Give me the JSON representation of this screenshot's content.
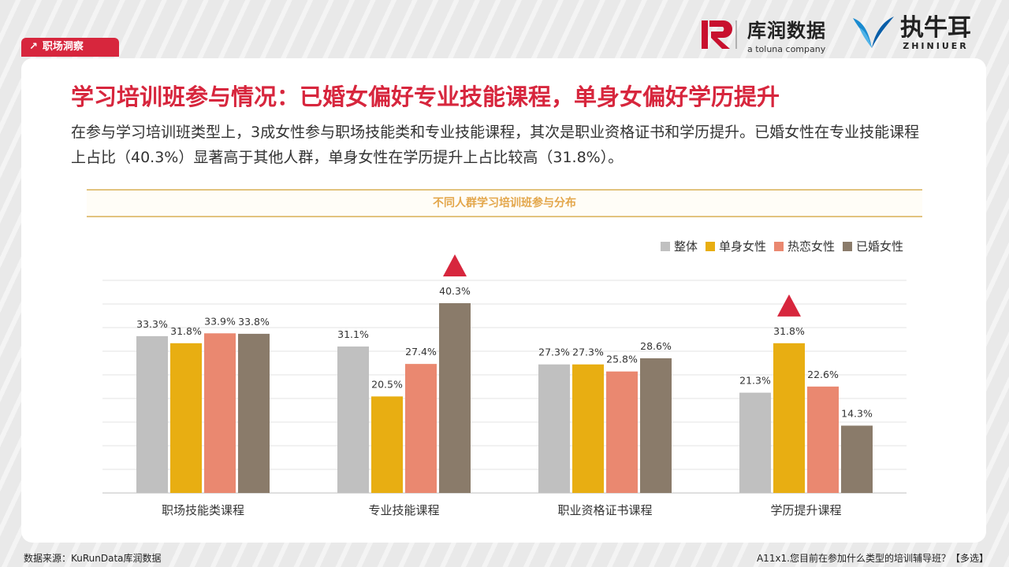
{
  "tag": {
    "label": "职场洞察"
  },
  "brand": {
    "kurun_name": "库润数据",
    "kurun_sub": "a toluna company",
    "kurun_mark": "R",
    "zhiniuer_name": "执牛耳",
    "zhiniuer_sub": "ZHINIUER"
  },
  "header": {
    "title": "学习培训班参与情况：已婚女偏好专业技能课程，单身女偏好学历提升",
    "description": "在参与学习培训班类型上，3成女性参与职场技能类和专业技能课程，其次是职业资格证书和学历提升。已婚女性在专业技能课程上占比（40.3%）显著高于其他人群，单身女性在学历提升上占比较高（31.8%）。"
  },
  "chart_data": {
    "type": "bar",
    "title": "不同人群学习培训班参与分布",
    "categories": [
      "职场技能类课程",
      "专业技能课程",
      "职业资格证书课程",
      "学历提升课程"
    ],
    "series": [
      {
        "name": "整体",
        "color": "#c0c0c0",
        "values": [
          33.3,
          31.1,
          27.3,
          21.3
        ]
      },
      {
        "name": "单身女性",
        "color": "#e8ae12",
        "values": [
          31.8,
          20.5,
          27.3,
          31.8
        ]
      },
      {
        "name": "热恋女性",
        "color": "#ea8870",
        "values": [
          33.9,
          27.4,
          25.8,
          22.6
        ]
      },
      {
        "name": "已婚女性",
        "color": "#8a7b6a",
        "values": [
          33.8,
          40.3,
          28.6,
          14.3
        ]
      }
    ],
    "value_suffix": "%",
    "ylim": [
      0,
      40.3
    ],
    "grid": true,
    "legend_position": "top-right",
    "highlights": [
      {
        "category": "专业技能课程",
        "series": "已婚女性",
        "marker": "up-triangle",
        "color": "#d7263d"
      },
      {
        "category": "学历提升课程",
        "series": "单身女性",
        "marker": "up-triangle",
        "color": "#d7263d"
      }
    ]
  },
  "footer": {
    "source": "数据来源：KuRunData库润数据",
    "question": "A11x1.您目前在参加什么类型的培训辅导班？【多选】"
  }
}
